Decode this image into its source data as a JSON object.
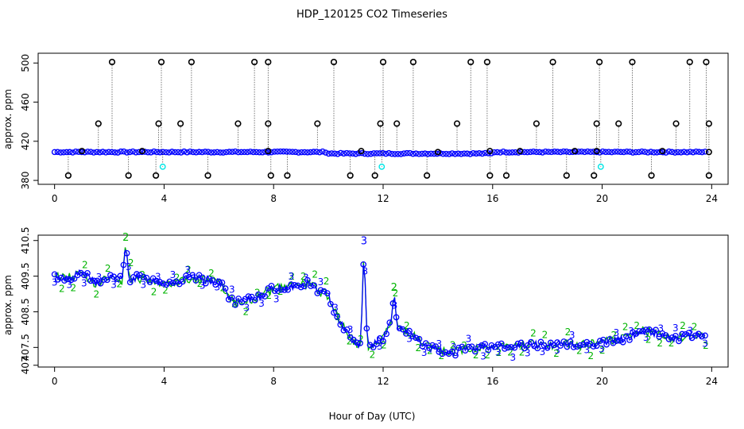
{
  "title": "HDP_120125  CO2 Timeseries",
  "xlabel": "Hour of Day (UTC)",
  "colors": {
    "frame": "#000000",
    "blue": "#0000ff",
    "green": "#00b400",
    "cyan": "#00e5e5",
    "black": "#000000"
  },
  "chart_data": [
    {
      "type": "scatter",
      "name": "top-panel",
      "title": "HDP_120125  CO2 Timeseries",
      "xlabel": "",
      "ylabel": "approx. ppm",
      "xlim": [
        -0.6,
        24.6
      ],
      "ylim": [
        376,
        510
      ],
      "x_ticks": [
        0,
        4,
        8,
        12,
        16,
        20,
        24
      ],
      "y_ticks": [
        380,
        420,
        460,
        500
      ],
      "grid": false,
      "baseline_value": 409,
      "spikes_high": [
        {
          "x": 2.1,
          "y": 501
        },
        {
          "x": 3.9,
          "y": 501
        },
        {
          "x": 5.0,
          "y": 501
        },
        {
          "x": 7.3,
          "y": 501
        },
        {
          "x": 7.8,
          "y": 501
        },
        {
          "x": 10.2,
          "y": 501
        },
        {
          "x": 12.0,
          "y": 501
        },
        {
          "x": 13.1,
          "y": 501
        },
        {
          "x": 15.2,
          "y": 501
        },
        {
          "x": 15.8,
          "y": 501
        },
        {
          "x": 18.2,
          "y": 501
        },
        {
          "x": 19.9,
          "y": 501
        },
        {
          "x": 21.1,
          "y": 501
        },
        {
          "x": 23.2,
          "y": 501
        },
        {
          "x": 23.8,
          "y": 501
        }
      ],
      "spikes_mid": [
        {
          "x": 1.6,
          "y": 438
        },
        {
          "x": 3.8,
          "y": 438
        },
        {
          "x": 4.6,
          "y": 438
        },
        {
          "x": 6.7,
          "y": 438
        },
        {
          "x": 7.8,
          "y": 438
        },
        {
          "x": 9.6,
          "y": 438
        },
        {
          "x": 11.9,
          "y": 438
        },
        {
          "x": 12.5,
          "y": 438
        },
        {
          "x": 14.7,
          "y": 438
        },
        {
          "x": 17.6,
          "y": 438
        },
        {
          "x": 19.8,
          "y": 438
        },
        {
          "x": 20.6,
          "y": 438
        },
        {
          "x": 22.7,
          "y": 438
        },
        {
          "x": 23.9,
          "y": 438
        }
      ],
      "spikes_low": [
        {
          "x": 0.5,
          "y": 385
        },
        {
          "x": 2.7,
          "y": 385
        },
        {
          "x": 3.7,
          "y": 385
        },
        {
          "x": 5.6,
          "y": 385
        },
        {
          "x": 7.9,
          "y": 385
        },
        {
          "x": 8.5,
          "y": 385
        },
        {
          "x": 10.8,
          "y": 385
        },
        {
          "x": 11.7,
          "y": 385
        },
        {
          "x": 13.6,
          "y": 385
        },
        {
          "x": 15.9,
          "y": 385
        },
        {
          "x": 16.5,
          "y": 385
        },
        {
          "x": 18.7,
          "y": 385
        },
        {
          "x": 19.7,
          "y": 385
        },
        {
          "x": 21.8,
          "y": 385
        },
        {
          "x": 23.9,
          "y": 385
        }
      ],
      "spikes_near": [
        {
          "x": 1.0,
          "y": 410
        },
        {
          "x": 3.2,
          "y": 410
        },
        {
          "x": 7.8,
          "y": 410
        },
        {
          "x": 11.2,
          "y": 410
        },
        {
          "x": 14.0,
          "y": 409
        },
        {
          "x": 15.9,
          "y": 410
        },
        {
          "x": 17.0,
          "y": 410
        },
        {
          "x": 19.0,
          "y": 410
        },
        {
          "x": 19.8,
          "y": 410
        },
        {
          "x": 22.2,
          "y": 410
        },
        {
          "x": 23.9,
          "y": 409
        }
      ],
      "cyan_points": [
        {
          "x": 3.95,
          "y": 394
        },
        {
          "x": 11.95,
          "y": 394
        },
        {
          "x": 19.95,
          "y": 394
        }
      ]
    },
    {
      "type": "line",
      "name": "bottom-panel",
      "xlabel": "Hour of Day (UTC)",
      "ylabel": "approx. ppm",
      "xlim": [
        -0.6,
        24.6
      ],
      "ylim": [
        406.95,
        410.65
      ],
      "x_ticks": [
        0,
        4,
        8,
        12,
        16,
        20,
        24
      ],
      "y_ticks": [
        407.5,
        408.5,
        409.5,
        410.5
      ],
      "y_tick_labels": [
        "407",
        "407.5",
        "408.5",
        "409.5",
        "410.5"
      ],
      "y_tick_label_values": [
        407,
        407.5,
        408.5,
        409.5,
        410.5
      ],
      "grid": false,
      "profile": [
        [
          0.0,
          409.5
        ],
        [
          0.5,
          409.45
        ],
        [
          1.0,
          409.6
        ],
        [
          1.5,
          409.3
        ],
        [
          2.0,
          409.45
        ],
        [
          2.5,
          409.4
        ],
        [
          3.0,
          409.45
        ],
        [
          3.5,
          409.4
        ],
        [
          4.0,
          409.3
        ],
        [
          4.5,
          409.35
        ],
        [
          5.0,
          409.45
        ],
        [
          5.5,
          409.4
        ],
        [
          6.0,
          409.35
        ],
        [
          6.3,
          409.0
        ],
        [
          6.6,
          408.75
        ],
        [
          7.0,
          408.8
        ],
        [
          7.5,
          408.95
        ],
        [
          8.0,
          409.15
        ],
        [
          8.5,
          409.2
        ],
        [
          9.0,
          409.25
        ],
        [
          9.3,
          409.3
        ],
        [
          9.6,
          409.1
        ],
        [
          10.0,
          408.95
        ],
        [
          10.3,
          408.4
        ],
        [
          10.7,
          407.9
        ],
        [
          11.0,
          407.6
        ],
        [
          11.5,
          407.55
        ],
        [
          12.0,
          407.75
        ],
        [
          12.3,
          408.2
        ],
        [
          12.6,
          408.0
        ],
        [
          13.0,
          407.9
        ],
        [
          13.5,
          407.55
        ],
        [
          14.0,
          407.4
        ],
        [
          14.5,
          407.35
        ],
        [
          15.0,
          407.45
        ],
        [
          15.5,
          407.5
        ],
        [
          16.0,
          407.55
        ],
        [
          16.5,
          407.5
        ],
        [
          17.0,
          407.55
        ],
        [
          17.5,
          407.6
        ],
        [
          18.0,
          407.55
        ],
        [
          18.5,
          407.6
        ],
        [
          19.0,
          407.55
        ],
        [
          19.5,
          407.6
        ],
        [
          20.0,
          407.65
        ],
        [
          20.5,
          407.7
        ],
        [
          21.0,
          407.8
        ],
        [
          21.5,
          407.95
        ],
        [
          22.0,
          407.9
        ],
        [
          22.5,
          407.75
        ],
        [
          23.0,
          407.8
        ],
        [
          23.5,
          407.85
        ],
        [
          23.8,
          407.85
        ]
      ],
      "peaks": [
        {
          "x": 2.6,
          "y": 410.4,
          "label": "2"
        },
        {
          "x": 11.3,
          "y": 410.3,
          "label": "3"
        },
        {
          "x": 12.4,
          "y": 409.0,
          "label": "2"
        }
      ],
      "marker_labels": [
        "2",
        "3"
      ]
    }
  ]
}
